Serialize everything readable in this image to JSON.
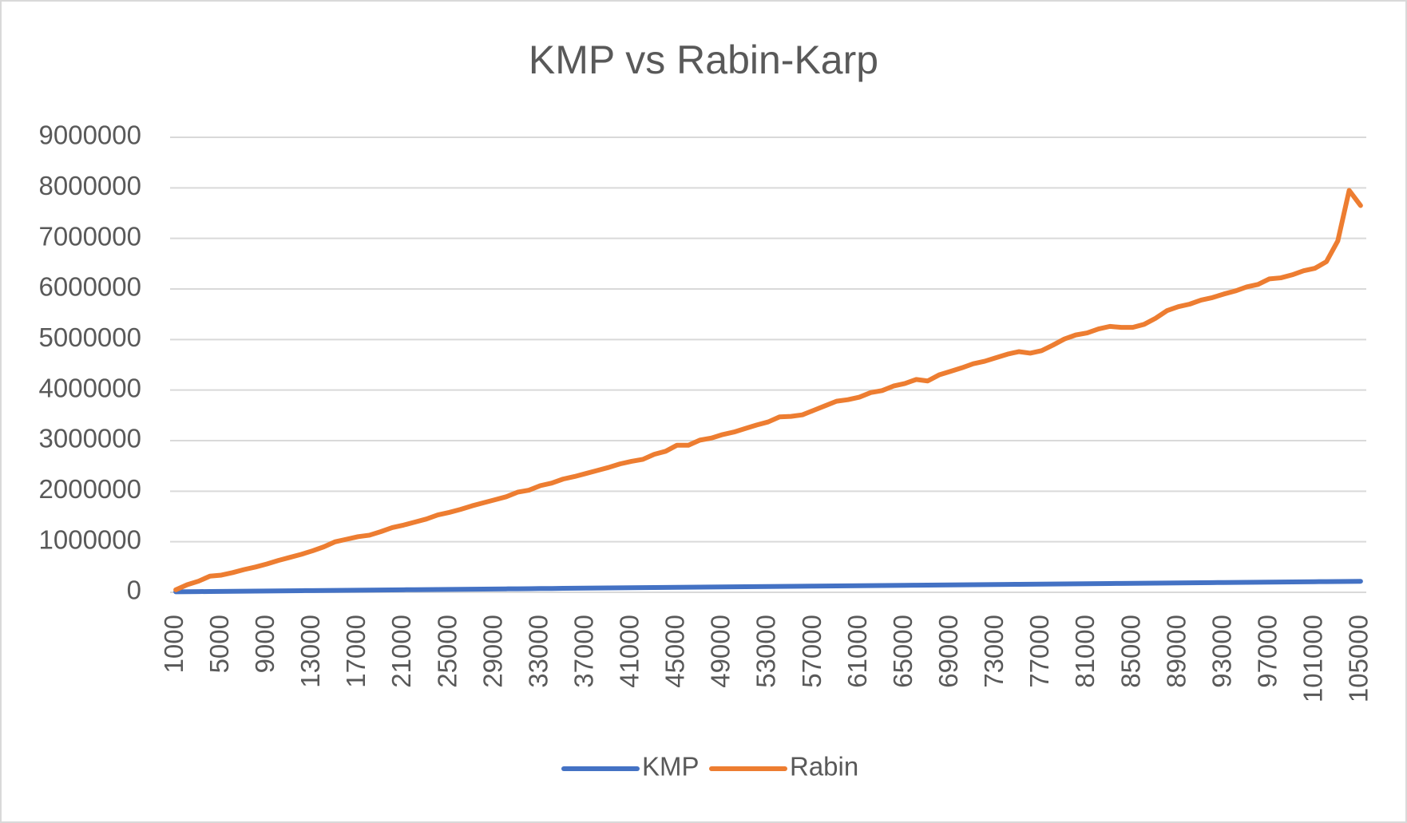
{
  "chart_data": {
    "type": "line",
    "title": "KMP vs Rabin-Karp",
    "categories": [
      "1000",
      null,
      null,
      null,
      "5000",
      null,
      null,
      null,
      "9000",
      null,
      null,
      null,
      "13000",
      null,
      null,
      null,
      "17000",
      null,
      null,
      null,
      "21000",
      null,
      null,
      null,
      "25000",
      null,
      null,
      null,
      "29000",
      null,
      null,
      null,
      "33000",
      null,
      null,
      null,
      "37000",
      null,
      null,
      null,
      "41000",
      null,
      null,
      null,
      "45000",
      null,
      null,
      null,
      "49000",
      null,
      null,
      null,
      "53000",
      null,
      null,
      null,
      "57000",
      null,
      null,
      null,
      "61000",
      null,
      null,
      null,
      "65000",
      null,
      null,
      null,
      "69000",
      null,
      null,
      null,
      "73000",
      null,
      null,
      null,
      "77000",
      null,
      null,
      null,
      "81000",
      null,
      null,
      null,
      "85000",
      null,
      null,
      null,
      "89000",
      null,
      null,
      null,
      "93000",
      null,
      null,
      null,
      "97000",
      null,
      null,
      null,
      "101000",
      null,
      null,
      null,
      "105000"
    ],
    "series": [
      {
        "name": "KMP",
        "color": "#4472c4",
        "values": [
          10000,
          12000,
          14000,
          16000,
          18000,
          20000,
          22000,
          24000,
          26000,
          28000,
          30000,
          32000,
          34000,
          36000,
          38000,
          40000,
          42000,
          44000,
          46000,
          48000,
          50000,
          52000,
          54000,
          56000,
          58000,
          60000,
          62000,
          64000,
          66000,
          68000,
          70000,
          72000,
          74000,
          76000,
          78000,
          80000,
          82000,
          84000,
          86000,
          88000,
          90000,
          92000,
          94000,
          96000,
          98000,
          100000,
          102000,
          104000,
          106000,
          108000,
          110000,
          112000,
          114000,
          116000,
          118000,
          120000,
          122000,
          124000,
          126000,
          128000,
          130000,
          132000,
          134000,
          136000,
          138000,
          140000,
          142000,
          144000,
          146000,
          148000,
          150000,
          152000,
          154000,
          156000,
          158000,
          160000,
          162000,
          164000,
          166000,
          168000,
          170000,
          172000,
          174000,
          176000,
          178000,
          180000,
          182000,
          184000,
          186000,
          188000,
          190000,
          192000,
          194000,
          196000,
          198000,
          200000,
          202000,
          204000,
          206000,
          208000,
          210000,
          212000,
          214000,
          216000,
          218000
        ]
      },
      {
        "name": "Rabin",
        "color": "#ed7d31",
        "values": [
          50000,
          150000,
          220000,
          320000,
          340000,
          390000,
          450000,
          500000,
          560000,
          630000,
          690000,
          750000,
          820000,
          900000,
          1000000,
          1050000,
          1100000,
          1130000,
          1200000,
          1280000,
          1330000,
          1390000,
          1450000,
          1530000,
          1580000,
          1640000,
          1710000,
          1770000,
          1830000,
          1890000,
          1980000,
          2020000,
          2110000,
          2160000,
          2240000,
          2290000,
          2350000,
          2410000,
          2470000,
          2540000,
          2590000,
          2630000,
          2730000,
          2790000,
          2910000,
          2910000,
          3010000,
          3050000,
          3120000,
          3170000,
          3240000,
          3310000,
          3370000,
          3470000,
          3480000,
          3510000,
          3600000,
          3690000,
          3780000,
          3810000,
          3860000,
          3950000,
          3990000,
          4080000,
          4130000,
          4210000,
          4180000,
          4300000,
          4370000,
          4440000,
          4520000,
          4570000,
          4640000,
          4710000,
          4760000,
          4730000,
          4780000,
          4890000,
          5010000,
          5090000,
          5130000,
          5210000,
          5260000,
          5240000,
          5240000,
          5300000,
          5420000,
          5570000,
          5650000,
          5700000,
          5780000,
          5830000,
          5900000,
          5960000,
          6040000,
          6090000,
          6200000,
          6220000,
          6280000,
          6360000,
          6410000,
          6540000,
          6950000,
          7950000,
          7650000
        ]
      }
    ],
    "ylim": [
      0,
      9000000
    ],
    "yticks": [
      0,
      1000000,
      2000000,
      3000000,
      4000000,
      5000000,
      6000000,
      7000000,
      8000000,
      9000000
    ],
    "grid": true,
    "legend": "bottom"
  }
}
